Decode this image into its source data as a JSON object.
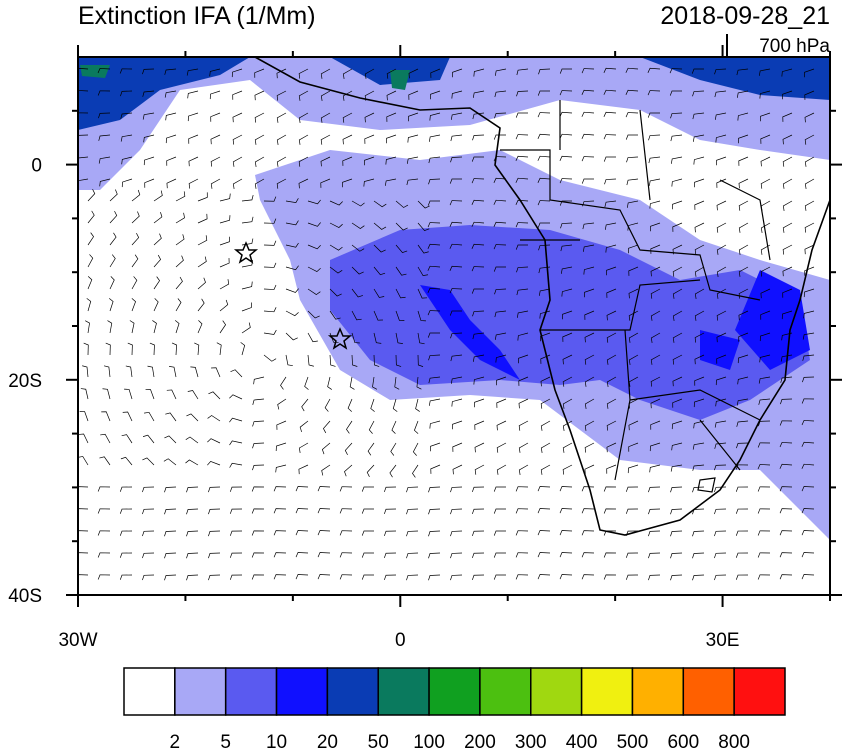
{
  "header": {
    "title": "Extinction IFA (1/Mm)",
    "date": "2018-09-28_21",
    "level": "700 hPa"
  },
  "map": {
    "lon_range": [
      -30,
      40
    ],
    "lat_range": [
      -40,
      10
    ],
    "lon_ticks": [
      {
        "value": -30,
        "label": "30W"
      },
      {
        "value": 0,
        "label": "0"
      },
      {
        "value": 30,
        "label": "30E"
      }
    ],
    "lon_minor_ticks": [
      -20,
      -10,
      10,
      20,
      40
    ],
    "lat_ticks": [
      {
        "value": 0,
        "label": "0"
      },
      {
        "value": -20,
        "label": "20S"
      },
      {
        "value": -40,
        "label": "40S"
      }
    ],
    "lat_minor_ticks": [
      5,
      -5,
      -10,
      -15,
      -25,
      -30,
      -35
    ]
  },
  "colorbar": {
    "colors": [
      "#ffffff",
      "#a8a8f6",
      "#5a5af0",
      "#1010ff",
      "#0a3cb4",
      "#0a7a5e",
      "#10a020",
      "#4cc010",
      "#a0d810",
      "#f0f010",
      "#ffb000",
      "#ff6000",
      "#ff1010"
    ],
    "labels": [
      2,
      5,
      10,
      20,
      50,
      100,
      200,
      300,
      400,
      500,
      600,
      800
    ]
  }
}
